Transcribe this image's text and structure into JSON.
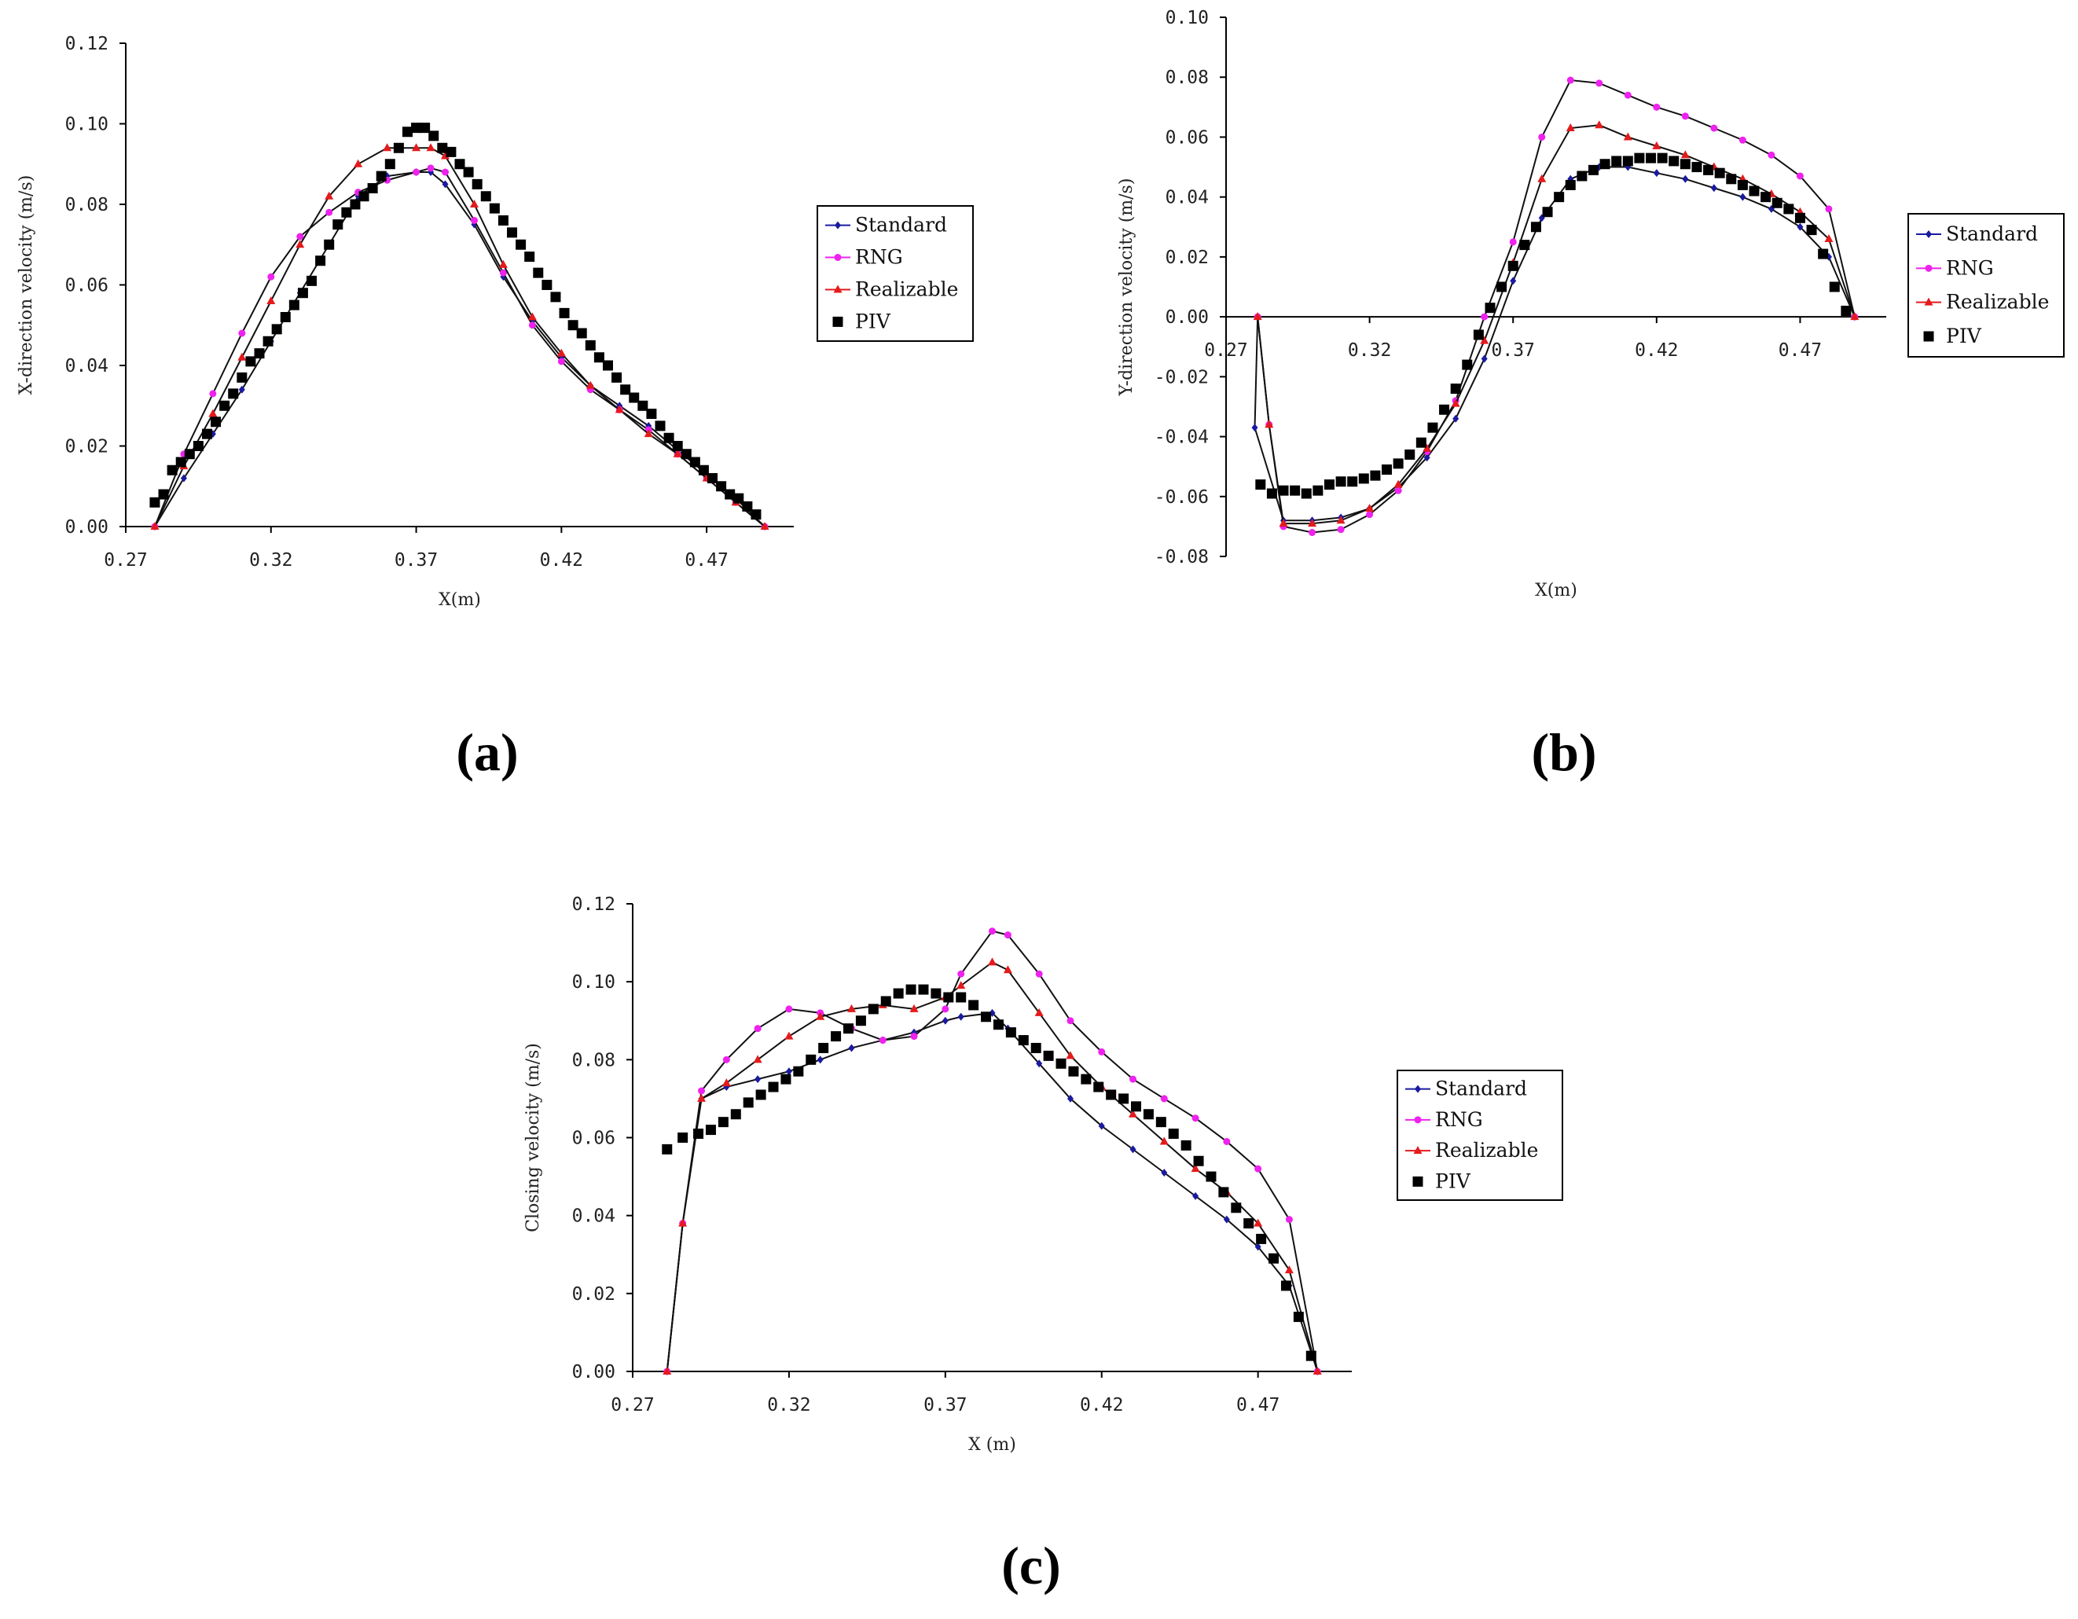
{
  "panel_labels": [
    "(a)",
    "(b)",
    "(c)"
  ],
  "legend_labels": [
    "Standard",
    "RNG",
    "Realizable",
    "PIV"
  ],
  "colors": {
    "standard": "#1a1aa0",
    "rng": "#ee22ee",
    "realizable": "#e41a1c",
    "piv": "#000000",
    "axis": "#000000"
  },
  "chart_data": [
    {
      "type": "line",
      "panel": "(a)",
      "xlabel": "X(m)",
      "ylabel": "X-direction velocity (m/s)",
      "xlim": [
        0.27,
        0.5
      ],
      "ylim": [
        0.0,
        0.12
      ],
      "xticks": [
        "0.27",
        "0.32",
        "0.37",
        "0.42",
        "0.47"
      ],
      "yticks": [
        "0.00",
        "0.02",
        "0.04",
        "0.06",
        "0.08",
        "0.10",
        "0.12"
      ],
      "legend": "right",
      "series": [
        {
          "name": "Standard",
          "marker": "diamond",
          "x": [
            0.28,
            0.29,
            0.3,
            0.31,
            0.32,
            0.33,
            0.34,
            0.35,
            0.36,
            0.37,
            0.375,
            0.38,
            0.39,
            0.4,
            0.41,
            0.42,
            0.43,
            0.44,
            0.45,
            0.46,
            0.47,
            0.48,
            0.49
          ],
          "y": [
            0.0,
            0.012,
            0.023,
            0.034,
            0.046,
            0.058,
            0.07,
            0.082,
            0.087,
            0.088,
            0.088,
            0.085,
            0.075,
            0.062,
            0.051,
            0.042,
            0.035,
            0.03,
            0.025,
            0.019,
            0.013,
            0.007,
            0.0
          ]
        },
        {
          "name": "RNG",
          "marker": "circle",
          "x": [
            0.28,
            0.29,
            0.3,
            0.31,
            0.32,
            0.33,
            0.34,
            0.35,
            0.36,
            0.37,
            0.375,
            0.38,
            0.39,
            0.4,
            0.41,
            0.42,
            0.43,
            0.44,
            0.45,
            0.46,
            0.47,
            0.48,
            0.49
          ],
          "y": [
            0.0,
            0.018,
            0.033,
            0.048,
            0.062,
            0.072,
            0.078,
            0.083,
            0.086,
            0.088,
            0.089,
            0.088,
            0.076,
            0.063,
            0.05,
            0.041,
            0.034,
            0.029,
            0.024,
            0.018,
            0.012,
            0.006,
            0.0
          ]
        },
        {
          "name": "Realizable",
          "marker": "triangle",
          "x": [
            0.28,
            0.29,
            0.3,
            0.31,
            0.32,
            0.33,
            0.34,
            0.35,
            0.36,
            0.37,
            0.375,
            0.38,
            0.39,
            0.4,
            0.41,
            0.42,
            0.43,
            0.44,
            0.45,
            0.46,
            0.47,
            0.48,
            0.49
          ],
          "y": [
            0.0,
            0.015,
            0.028,
            0.042,
            0.056,
            0.07,
            0.082,
            0.09,
            0.094,
            0.094,
            0.094,
            0.092,
            0.08,
            0.065,
            0.052,
            0.043,
            0.035,
            0.029,
            0.023,
            0.018,
            0.012,
            0.006,
            0.0
          ]
        },
        {
          "name": "PIV",
          "marker": "square",
          "x": [
            0.28,
            0.283,
            0.286,
            0.289,
            0.292,
            0.295,
            0.298,
            0.301,
            0.304,
            0.307,
            0.31,
            0.313,
            0.316,
            0.319,
            0.322,
            0.325,
            0.328,
            0.331,
            0.334,
            0.337,
            0.34,
            0.343,
            0.346,
            0.349,
            0.352,
            0.355,
            0.358,
            0.361,
            0.364,
            0.367,
            0.37,
            0.373,
            0.376,
            0.379,
            0.382,
            0.385,
            0.388,
            0.391,
            0.394,
            0.397,
            0.4,
            0.403,
            0.406,
            0.409,
            0.412,
            0.415,
            0.418,
            0.421,
            0.424,
            0.427,
            0.43,
            0.433,
            0.436,
            0.439,
            0.442,
            0.445,
            0.448,
            0.451,
            0.454,
            0.457,
            0.46,
            0.463,
            0.466,
            0.469,
            0.472,
            0.475,
            0.478,
            0.481,
            0.484,
            0.487
          ],
          "y": [
            0.006,
            0.008,
            0.014,
            0.016,
            0.018,
            0.02,
            0.023,
            0.026,
            0.03,
            0.033,
            0.037,
            0.041,
            0.043,
            0.046,
            0.049,
            0.052,
            0.055,
            0.058,
            0.061,
            0.066,
            0.07,
            0.075,
            0.078,
            0.08,
            0.082,
            0.084,
            0.087,
            0.09,
            0.094,
            0.098,
            0.099,
            0.099,
            0.097,
            0.094,
            0.093,
            0.09,
            0.088,
            0.085,
            0.082,
            0.079,
            0.076,
            0.073,
            0.07,
            0.067,
            0.063,
            0.06,
            0.057,
            0.053,
            0.05,
            0.048,
            0.045,
            0.042,
            0.04,
            0.037,
            0.034,
            0.032,
            0.03,
            0.028,
            0.025,
            0.022,
            0.02,
            0.018,
            0.016,
            0.014,
            0.012,
            0.01,
            0.008,
            0.007,
            0.005,
            0.003
          ]
        }
      ]
    },
    {
      "type": "line",
      "panel": "(b)",
      "xlabel": "X(m)",
      "ylabel": "Y-direction velocity (m/s)",
      "xlim": [
        0.27,
        0.5
      ],
      "ylim": [
        -0.08,
        0.1
      ],
      "xticks": [
        "0.27",
        "0.32",
        "0.37",
        "0.42",
        "0.47"
      ],
      "yticks": [
        "-0.08",
        "-0.06",
        "-0.04",
        "-0.02",
        "0.00",
        "0.02",
        "0.04",
        "0.06",
        "0.08",
        "0.10"
      ],
      "legend": "right",
      "series": [
        {
          "name": "Standard",
          "marker": "diamond",
          "x": [
            0.281,
            0.28,
            0.29,
            0.3,
            0.31,
            0.32,
            0.33,
            0.34,
            0.35,
            0.36,
            0.37,
            0.38,
            0.39,
            0.4,
            0.41,
            0.42,
            0.43,
            0.44,
            0.45,
            0.46,
            0.47,
            0.48,
            0.489
          ],
          "y": [
            0.0,
            -0.037,
            -0.068,
            -0.068,
            -0.067,
            -0.064,
            -0.057,
            -0.047,
            -0.034,
            -0.014,
            0.012,
            0.033,
            0.046,
            0.05,
            0.05,
            0.048,
            0.046,
            0.043,
            0.04,
            0.036,
            0.03,
            0.02,
            0.0
          ]
        },
        {
          "name": "RNG",
          "marker": "circle",
          "x": [
            0.281,
            0.285,
            0.29,
            0.3,
            0.31,
            0.32,
            0.33,
            0.34,
            0.35,
            0.36,
            0.37,
            0.38,
            0.39,
            0.4,
            0.41,
            0.42,
            0.43,
            0.44,
            0.45,
            0.46,
            0.47,
            0.48,
            0.489
          ],
          "y": [
            0.0,
            -0.036,
            -0.07,
            -0.072,
            -0.071,
            -0.066,
            -0.058,
            -0.045,
            -0.028,
            0.0,
            0.025,
            0.06,
            0.079,
            0.078,
            0.074,
            0.07,
            0.067,
            0.063,
            0.059,
            0.054,
            0.047,
            0.036,
            0.0
          ]
        },
        {
          "name": "Realizable",
          "marker": "triangle",
          "x": [
            0.281,
            0.285,
            0.29,
            0.3,
            0.31,
            0.32,
            0.33,
            0.34,
            0.35,
            0.36,
            0.37,
            0.38,
            0.39,
            0.4,
            0.41,
            0.42,
            0.43,
            0.44,
            0.45,
            0.46,
            0.47,
            0.48,
            0.489
          ],
          "y": [
            0.0,
            -0.036,
            -0.069,
            -0.069,
            -0.068,
            -0.064,
            -0.056,
            -0.044,
            -0.029,
            -0.008,
            0.018,
            0.046,
            0.063,
            0.064,
            0.06,
            0.057,
            0.054,
            0.05,
            0.046,
            0.041,
            0.035,
            0.026,
            0.0
          ]
        },
        {
          "name": "PIV",
          "marker": "square",
          "x": [
            0.282,
            0.286,
            0.29,
            0.294,
            0.298,
            0.302,
            0.306,
            0.31,
            0.314,
            0.318,
            0.322,
            0.326,
            0.33,
            0.334,
            0.338,
            0.342,
            0.346,
            0.35,
            0.354,
            0.358,
            0.362,
            0.366,
            0.37,
            0.374,
            0.378,
            0.382,
            0.386,
            0.39,
            0.394,
            0.398,
            0.402,
            0.406,
            0.41,
            0.414,
            0.418,
            0.422,
            0.426,
            0.43,
            0.434,
            0.438,
            0.442,
            0.446,
            0.45,
            0.454,
            0.458,
            0.462,
            0.466,
            0.47,
            0.474,
            0.478,
            0.482,
            0.486
          ],
          "y": [
            -0.056,
            -0.059,
            -0.058,
            -0.058,
            -0.059,
            -0.058,
            -0.056,
            -0.055,
            -0.055,
            -0.054,
            -0.053,
            -0.051,
            -0.049,
            -0.046,
            -0.042,
            -0.037,
            -0.031,
            -0.024,
            -0.016,
            -0.006,
            0.003,
            0.01,
            0.017,
            0.024,
            0.03,
            0.035,
            0.04,
            0.044,
            0.047,
            0.049,
            0.051,
            0.052,
            0.052,
            0.053,
            0.053,
            0.053,
            0.052,
            0.051,
            0.05,
            0.049,
            0.048,
            0.046,
            0.044,
            0.042,
            0.04,
            0.038,
            0.036,
            0.033,
            0.029,
            0.021,
            0.01,
            0.002
          ]
        }
      ]
    },
    {
      "type": "line",
      "panel": "(c)",
      "xlabel": "X (m)",
      "ylabel": "Closing velocity (m/s)",
      "xlim": [
        0.27,
        0.5
      ],
      "ylim": [
        0.0,
        0.12
      ],
      "xticks": [
        "0.27",
        "0.32",
        "0.37",
        "0.42",
        "0.47"
      ],
      "yticks": [
        "0.00",
        "0.02",
        "0.04",
        "0.06",
        "0.08",
        "0.10",
        "0.12"
      ],
      "legend": "right",
      "series": [
        {
          "name": "Standard",
          "marker": "diamond",
          "x": [
            0.281,
            0.286,
            0.292,
            0.3,
            0.31,
            0.32,
            0.33,
            0.34,
            0.35,
            0.36,
            0.37,
            0.375,
            0.385,
            0.39,
            0.4,
            0.41,
            0.42,
            0.43,
            0.44,
            0.45,
            0.46,
            0.47,
            0.48,
            0.489
          ],
          "y": [
            0.0,
            0.038,
            0.07,
            0.073,
            0.075,
            0.077,
            0.08,
            0.083,
            0.085,
            0.087,
            0.09,
            0.091,
            0.092,
            0.088,
            0.079,
            0.07,
            0.063,
            0.057,
            0.051,
            0.045,
            0.039,
            0.032,
            0.022,
            0.0
          ]
        },
        {
          "name": "RNG",
          "marker": "circle",
          "x": [
            0.281,
            0.286,
            0.292,
            0.3,
            0.31,
            0.32,
            0.33,
            0.34,
            0.35,
            0.36,
            0.37,
            0.375,
            0.385,
            0.39,
            0.4,
            0.41,
            0.42,
            0.43,
            0.44,
            0.45,
            0.46,
            0.47,
            0.48,
            0.489
          ],
          "y": [
            0.0,
            0.038,
            0.072,
            0.08,
            0.088,
            0.093,
            0.092,
            0.088,
            0.085,
            0.086,
            0.093,
            0.102,
            0.113,
            0.112,
            0.102,
            0.09,
            0.082,
            0.075,
            0.07,
            0.065,
            0.059,
            0.052,
            0.039,
            0.0
          ]
        },
        {
          "name": "Realizable",
          "marker": "triangle",
          "x": [
            0.281,
            0.286,
            0.292,
            0.3,
            0.31,
            0.32,
            0.33,
            0.34,
            0.35,
            0.36,
            0.37,
            0.375,
            0.385,
            0.39,
            0.4,
            0.41,
            0.42,
            0.43,
            0.44,
            0.45,
            0.46,
            0.47,
            0.48,
            0.489
          ],
          "y": [
            0.0,
            0.038,
            0.07,
            0.074,
            0.08,
            0.086,
            0.091,
            0.093,
            0.094,
            0.093,
            0.096,
            0.099,
            0.105,
            0.103,
            0.092,
            0.081,
            0.073,
            0.066,
            0.059,
            0.052,
            0.046,
            0.038,
            0.026,
            0.0
          ]
        },
        {
          "name": "PIV",
          "marker": "square",
          "x": [
            0.281,
            0.286,
            0.291,
            0.295,
            0.299,
            0.303,
            0.307,
            0.311,
            0.315,
            0.319,
            0.323,
            0.327,
            0.331,
            0.335,
            0.339,
            0.343,
            0.347,
            0.351,
            0.355,
            0.359,
            0.363,
            0.367,
            0.371,
            0.375,
            0.379,
            0.383,
            0.387,
            0.391,
            0.395,
            0.399,
            0.403,
            0.407,
            0.411,
            0.415,
            0.419,
            0.423,
            0.427,
            0.431,
            0.435,
            0.439,
            0.443,
            0.447,
            0.451,
            0.455,
            0.459,
            0.463,
            0.467,
            0.471,
            0.475,
            0.479,
            0.483,
            0.487
          ],
          "y": [
            0.057,
            0.06,
            0.061,
            0.062,
            0.064,
            0.066,
            0.069,
            0.071,
            0.073,
            0.075,
            0.077,
            0.08,
            0.083,
            0.086,
            0.088,
            0.09,
            0.093,
            0.095,
            0.097,
            0.098,
            0.098,
            0.097,
            0.096,
            0.096,
            0.094,
            0.091,
            0.089,
            0.087,
            0.085,
            0.083,
            0.081,
            0.079,
            0.077,
            0.075,
            0.073,
            0.071,
            0.07,
            0.068,
            0.066,
            0.064,
            0.061,
            0.058,
            0.054,
            0.05,
            0.046,
            0.042,
            0.038,
            0.034,
            0.029,
            0.022,
            0.014,
            0.004
          ]
        }
      ]
    }
  ]
}
